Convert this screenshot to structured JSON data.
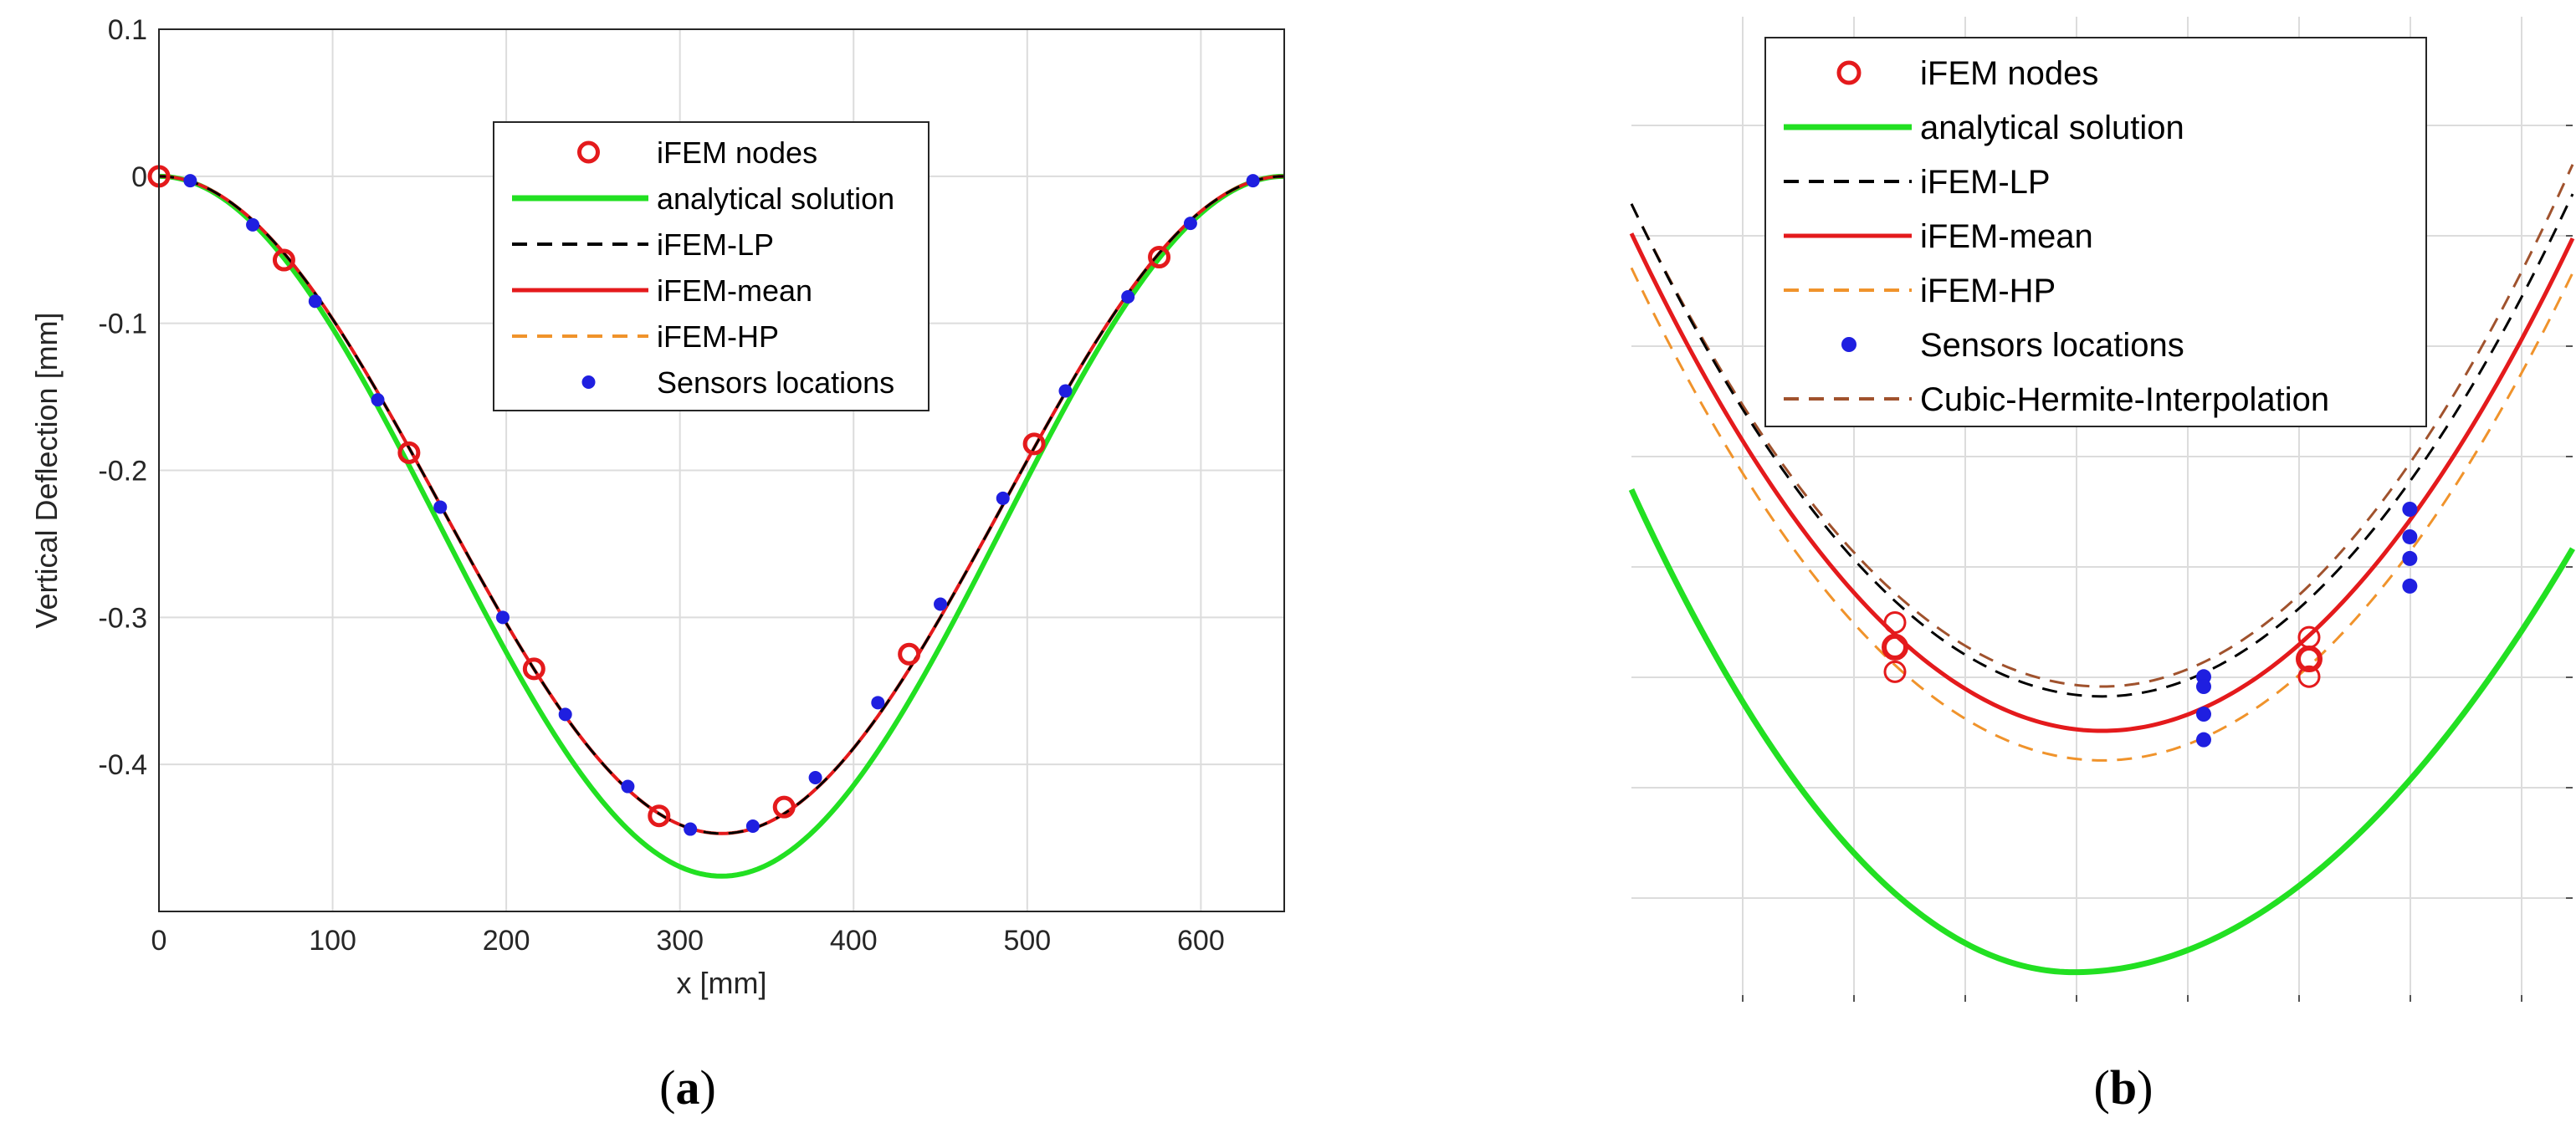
{
  "figure": {
    "captions": [
      "(a)",
      "(b)"
    ],
    "caption_a_letter": "a",
    "caption_b_letter": "b"
  },
  "colors": {
    "ifem_nodes": "#e41a1c",
    "analytical": "#22e022",
    "lp": "#000000",
    "mean": "#e41a1c",
    "hp": "#f0932b",
    "sensors": "#1f1fe0",
    "hermite": "#a0522d"
  },
  "chart_data": [
    {
      "panel": "a",
      "type": "line",
      "title": "",
      "xlabel": "x [mm]",
      "ylabel": "Vertical Deflection [mm]",
      "xlim": [
        0,
        648
      ],
      "ylim": [
        -0.5,
        0.1
      ],
      "xticks": [
        0,
        100,
        200,
        300,
        400,
        500,
        600
      ],
      "yticks": [
        0.1,
        0,
        -0.1,
        -0.2,
        -0.3,
        -0.4
      ],
      "ytick_labels": [
        "0.1",
        "0",
        "-0.1",
        "-0.2",
        "-0.3",
        "-0.4"
      ],
      "grid": true,
      "legend_position": "top-right (inside)",
      "legend": [
        "iFEM nodes",
        "analytical solution",
        "iFEM-LP",
        "iFEM-mean",
        "iFEM-HP",
        "Sensors locations"
      ],
      "series": [
        {
          "name": "analytical solution",
          "style": "solid",
          "x_center": 324,
          "amplitude": 0.476,
          "period": 648
        },
        {
          "name": "iFEM-LP",
          "style": "dashed",
          "x_center": 324,
          "amplitude": 0.447,
          "period": 648
        },
        {
          "name": "iFEM-mean",
          "style": "solid",
          "x_center": 324,
          "amplitude": 0.447,
          "period": 648
        },
        {
          "name": "iFEM-HP",
          "style": "dashed",
          "x_center": 324,
          "amplitude": 0.447,
          "period": 648
        }
      ],
      "ifem_nodes": {
        "x": [
          0,
          72,
          144,
          216,
          288,
          360,
          432,
          504,
          576
        ],
        "y": [
          0,
          -0.057,
          -0.188,
          -0.335,
          -0.435,
          -0.429,
          -0.325,
          -0.182,
          -0.055
        ]
      },
      "sensors": {
        "x": [
          18,
          54,
          90,
          126,
          162,
          198,
          234,
          270,
          306,
          342,
          378,
          414,
          450,
          486,
          522,
          558,
          594,
          630
        ],
        "y": [
          -0.003,
          -0.033,
          -0.085,
          -0.152,
          -0.225,
          -0.3,
          -0.366,
          -0.415,
          -0.444,
          -0.442,
          -0.409,
          -0.358,
          -0.291,
          -0.219,
          -0.146,
          -0.082,
          -0.032,
          -0.003
        ]
      }
    },
    {
      "panel": "b",
      "type": "line",
      "title": "",
      "xlabel": "",
      "ylabel": "",
      "description_units": "zoomed view (no tick labels)",
      "xlim": [
        0,
        1
      ],
      "ylim": [
        0,
        1
      ],
      "grid": true,
      "legend_position": "top-left (inside)",
      "legend": [
        "iFEM nodes",
        "analytical solution",
        "iFEM-LP",
        "iFEM-mean",
        "iFEM-HP",
        "Sensors locations",
        "Cubic-Hermite-Interpolation"
      ],
      "series": [
        {
          "name": "analytical solution",
          "style": "solid",
          "left": 0.52,
          "min": 0.03,
          "right": 0.46,
          "min_x": 0.47
        },
        {
          "name": "iFEM-LP",
          "style": "dashed",
          "left": 0.81,
          "min": 0.31,
          "right": 0.82,
          "min_x": 0.5
        },
        {
          "name": "iFEM-mean",
          "style": "solid",
          "left": 0.78,
          "min": 0.275,
          "right": 0.775,
          "min_x": 0.5
        },
        {
          "name": "iFEM-HP",
          "style": "dashed",
          "left": 0.745,
          "min": 0.245,
          "right": 0.74,
          "min_x": 0.5
        },
        {
          "name": "Cubic-Hermite-Interpolation",
          "style": "dashed",
          "left": 0.81,
          "min": 0.32,
          "right": 0.85,
          "min_x": 0.5
        }
      ],
      "ifem_nodes": {
        "x": [
          0.28,
          0.28,
          0.28,
          0.72,
          0.72,
          0.72
        ],
        "y": [
          0.385,
          0.36,
          0.335,
          0.37,
          0.348,
          0.33
        ]
      },
      "sensors": {
        "x": [
          0.608,
          0.608,
          0.608,
          0.608,
          0.827,
          0.827,
          0.827,
          0.827
        ],
        "y": [
          0.33,
          0.32,
          0.292,
          0.266,
          0.5,
          0.472,
          0.45,
          0.422
        ]
      }
    }
  ]
}
